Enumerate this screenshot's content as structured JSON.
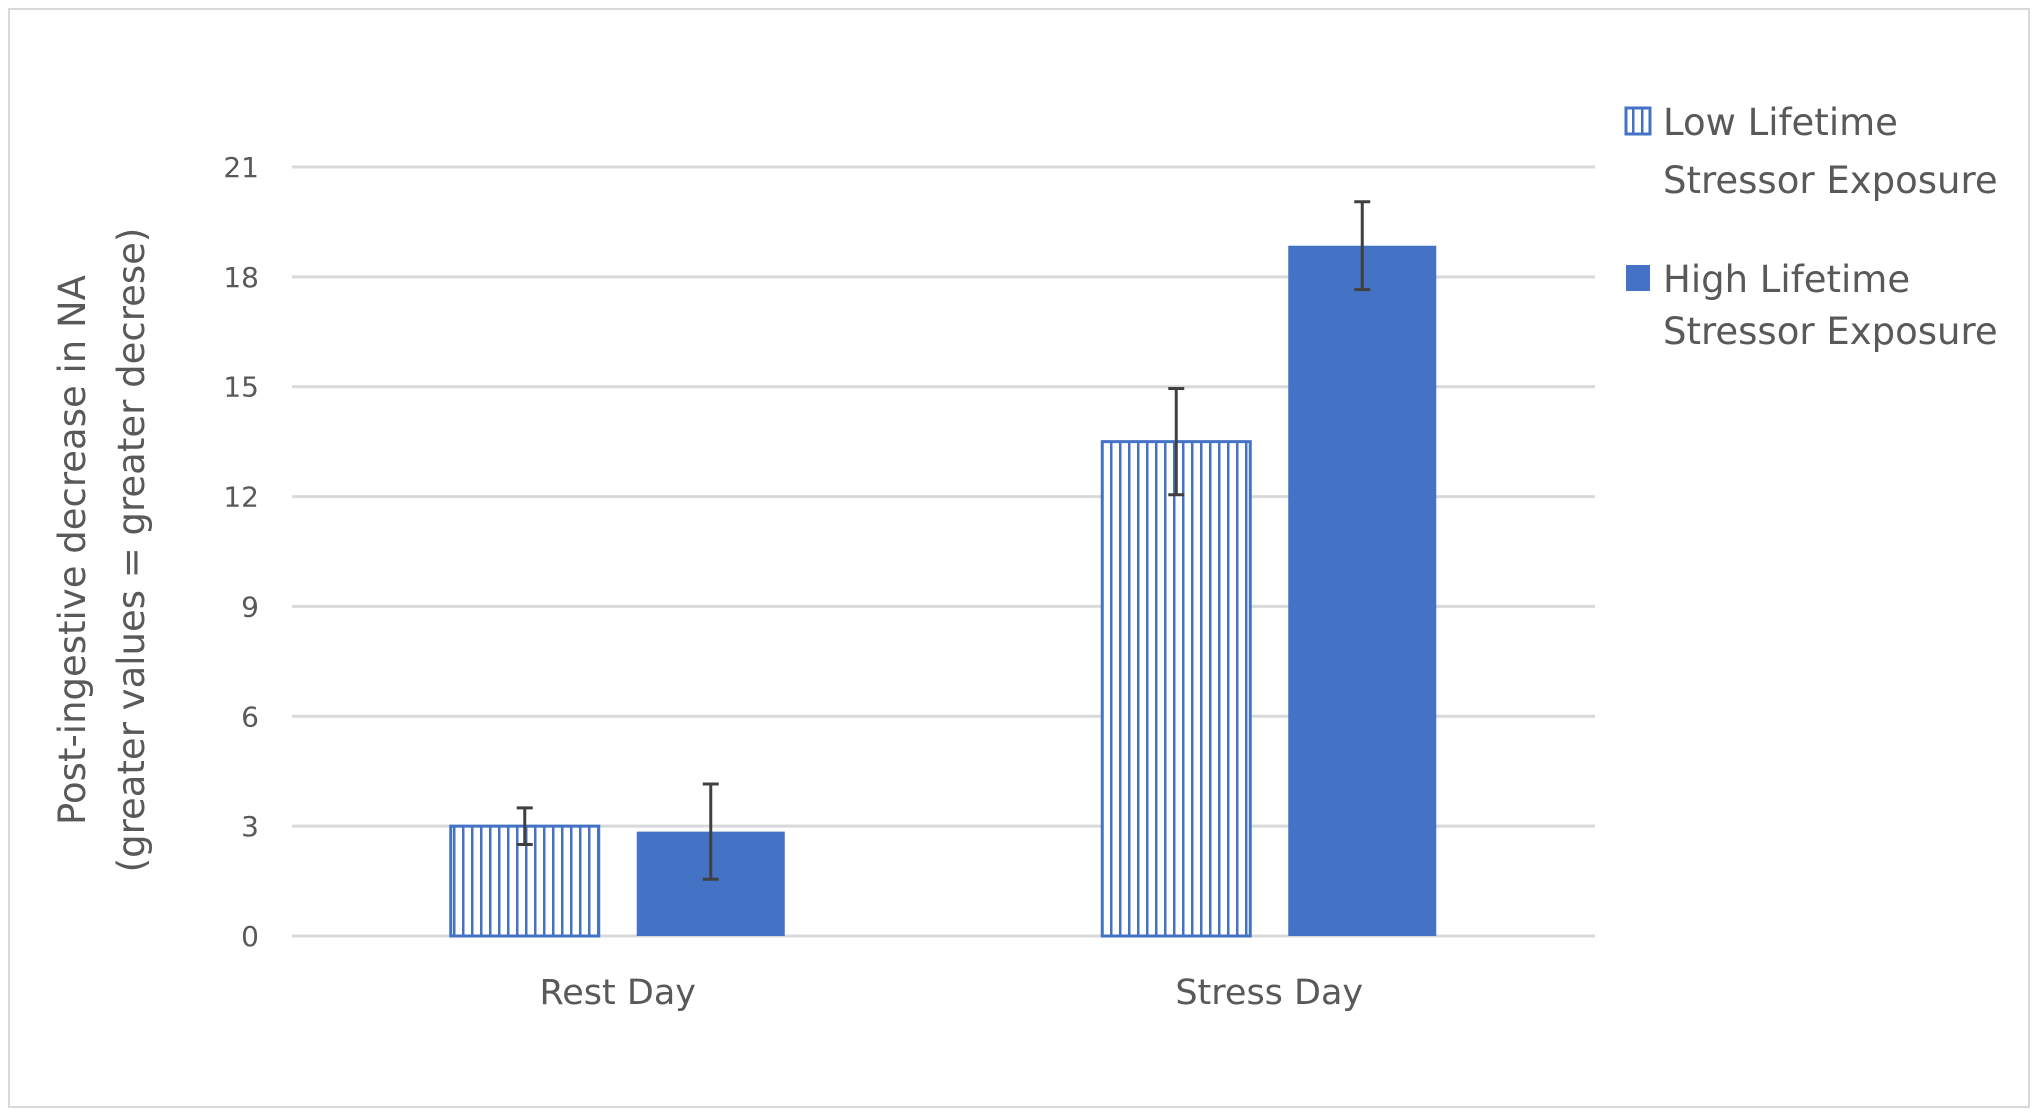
{
  "chart_data": {
    "type": "bar",
    "title": "",
    "xlabel": "",
    "ylabel": "Post-ingestive decrease in NA",
    "ylabel_line2": "(greater values = greater decrese)",
    "categories": [
      "Rest Day",
      "Stress Day"
    ],
    "ylim": [
      0,
      21
    ],
    "yticks": [
      0,
      3,
      6,
      9,
      12,
      15,
      18,
      21
    ],
    "grid": true,
    "legend_position": "right",
    "series": [
      {
        "name": "Low Lifetime Stressor Exposure",
        "legend_lines": [
          "Low Lifetime",
          "Stressor Exposure"
        ],
        "pattern": "vertical-stripes",
        "color": "#4472c4",
        "values": [
          3.0,
          13.5
        ],
        "error": [
          0.5,
          1.45
        ]
      },
      {
        "name": "High Lifetime Stressor Exposure",
        "legend_lines": [
          "High Lifetime",
          "Stressor Exposure"
        ],
        "pattern": "solid",
        "color": "#4472c4",
        "values": [
          2.85,
          18.85
        ],
        "error": [
          1.3,
          1.2
        ]
      }
    ]
  }
}
